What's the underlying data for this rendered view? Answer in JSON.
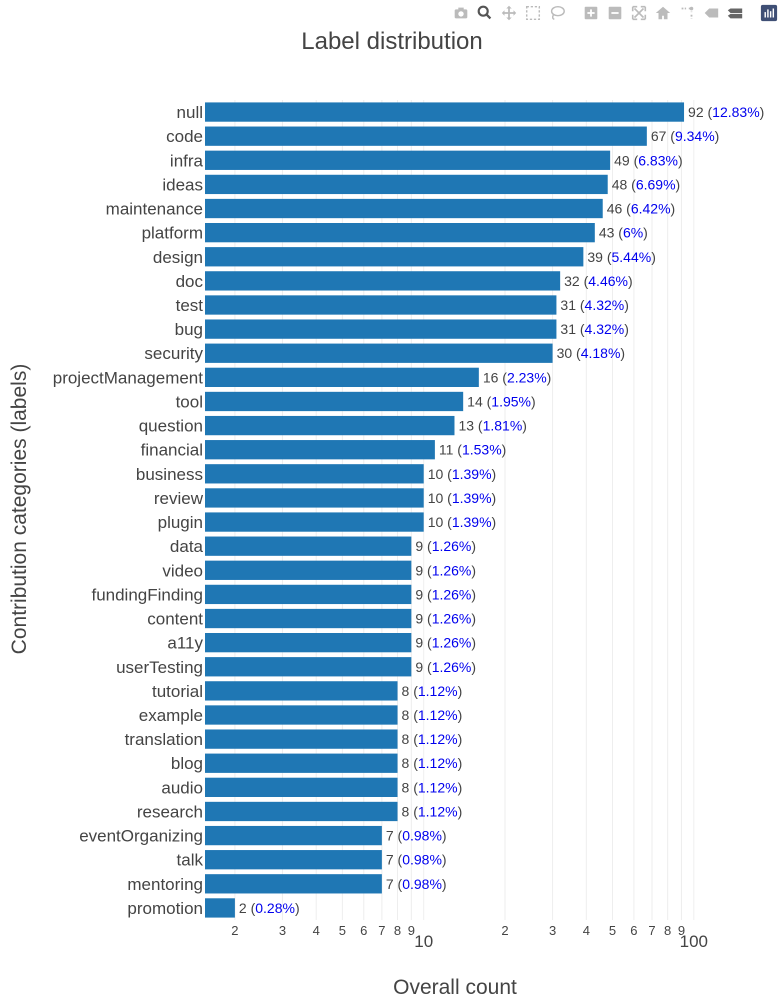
{
  "modebar": {
    "buttons": [
      {
        "name": "camera-icon"
      },
      {
        "name": "zoom-icon",
        "active": true
      },
      {
        "name": "pan-icon"
      },
      {
        "name": "box-select-icon"
      },
      {
        "name": "lasso-select-icon"
      },
      {
        "name": "gap"
      },
      {
        "name": "zoom-in-icon"
      },
      {
        "name": "zoom-out-icon"
      },
      {
        "name": "autoscale-icon"
      },
      {
        "name": "reset-axes-icon"
      },
      {
        "name": "spike-lines-icon"
      },
      {
        "name": "hover-closest-icon"
      },
      {
        "name": "hover-compare-icon"
      },
      {
        "name": "gap"
      },
      {
        "name": "plotly-logo-icon"
      }
    ]
  },
  "chart_data": {
    "type": "bar",
    "orientation": "horizontal",
    "x_scale": "log",
    "title": "Label distribution",
    "xlabel": "Overall count",
    "ylabel": "Contribution categories (labels)",
    "xlim": [
      1.55,
      110
    ],
    "bar_color": "#1f77b4",
    "pct_color": "#0000ee",
    "count_color": "#444444",
    "categories": [
      "null",
      "code",
      "infra",
      "ideas",
      "maintenance",
      "platform",
      "design",
      "doc",
      "test",
      "bug",
      "security",
      "projectManagement",
      "tool",
      "question",
      "financial",
      "business",
      "review",
      "plugin",
      "data",
      "video",
      "fundingFinding",
      "content",
      "a11y",
      "userTesting",
      "tutorial",
      "example",
      "translation",
      "blog",
      "audio",
      "research",
      "eventOrganizing",
      "talk",
      "mentoring",
      "promotion"
    ],
    "values": [
      92,
      67,
      49,
      48,
      46,
      43,
      39,
      32,
      31,
      31,
      30,
      16,
      14,
      13,
      11,
      10,
      10,
      10,
      9,
      9,
      9,
      9,
      9,
      9,
      8,
      8,
      8,
      8,
      8,
      8,
      7,
      7,
      7,
      2
    ],
    "percentages": [
      "12.83%",
      "9.34%",
      "6.83%",
      "6.69%",
      "6.42%",
      "6%",
      "5.44%",
      "4.46%",
      "4.32%",
      "4.32%",
      "4.18%",
      "2.23%",
      "1.95%",
      "1.81%",
      "1.53%",
      "1.39%",
      "1.39%",
      "1.39%",
      "1.26%",
      "1.26%",
      "1.26%",
      "1.26%",
      "1.26%",
      "1.26%",
      "1.12%",
      "1.12%",
      "1.12%",
      "1.12%",
      "1.12%",
      "1.12%",
      "0.98%",
      "0.98%",
      "0.98%",
      "0.28%"
    ],
    "minor_ticks": [
      {
        "value": 2,
        "label": "2"
      },
      {
        "value": 3,
        "label": "3"
      },
      {
        "value": 4,
        "label": "4"
      },
      {
        "value": 5,
        "label": "5"
      },
      {
        "value": 6,
        "label": "6"
      },
      {
        "value": 7,
        "label": "7"
      },
      {
        "value": 8,
        "label": "8"
      },
      {
        "value": 9,
        "label": "9"
      },
      {
        "value": 20,
        "label": "2"
      },
      {
        "value": 30,
        "label": "3"
      },
      {
        "value": 40,
        "label": "4"
      },
      {
        "value": 50,
        "label": "5"
      },
      {
        "value": 60,
        "label": "6"
      },
      {
        "value": 70,
        "label": "7"
      },
      {
        "value": 80,
        "label": "8"
      },
      {
        "value": 90,
        "label": "9"
      }
    ],
    "major_ticks": [
      {
        "value": 10,
        "label": "10"
      },
      {
        "value": 100,
        "label": "100"
      }
    ]
  }
}
